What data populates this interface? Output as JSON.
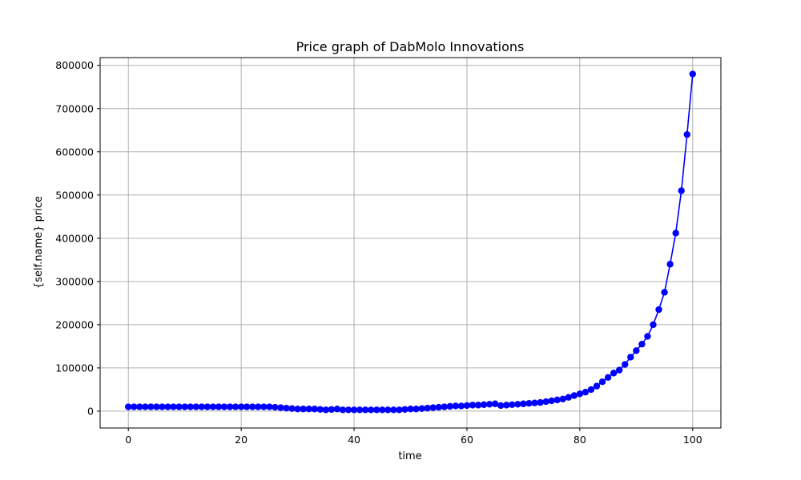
{
  "chart_data": {
    "type": "line",
    "title": "Price graph of DabMolo Innovations",
    "xlabel": "time",
    "ylabel": "{self.name} price",
    "xlim": [
      -5,
      105
    ],
    "ylim": [
      -39000,
      818000
    ],
    "xticks": [
      0,
      20,
      40,
      60,
      80,
      100
    ],
    "yticks": [
      0,
      100000,
      200000,
      300000,
      400000,
      500000,
      600000,
      700000,
      800000
    ],
    "grid": true,
    "marker": "circle",
    "color": "#0000ff",
    "series": [
      {
        "x": [
          0,
          1,
          2,
          3,
          4,
          5,
          6,
          7,
          8,
          9,
          10,
          11,
          12,
          13,
          14,
          15,
          16,
          17,
          18,
          19,
          20,
          21,
          22,
          23,
          24,
          25,
          26,
          27,
          28,
          29,
          30,
          31,
          32,
          33,
          34,
          35,
          36,
          37,
          38,
          39,
          40,
          41,
          42,
          43,
          44,
          45,
          46,
          47,
          48,
          49,
          50,
          51,
          52,
          53,
          54,
          55,
          56,
          57,
          58,
          59,
          60,
          61,
          62,
          63,
          64,
          65,
          66,
          67,
          68,
          69,
          70,
          71,
          72,
          73,
          74,
          75,
          76,
          77,
          78,
          79,
          80,
          81,
          82,
          83,
          84,
          85,
          86,
          87,
          88,
          89,
          90,
          91,
          92,
          93,
          94,
          95,
          96,
          97,
          98,
          99,
          100
        ],
        "y": [
          10000,
          10000,
          10000,
          10000,
          10000,
          10000,
          10000,
          10000,
          10000,
          10000,
          10000,
          10000,
          10000,
          10000,
          10000,
          10000,
          10000,
          10000,
          10000,
          10000,
          10000,
          10000,
          10000,
          10000,
          10000,
          10000,
          9000,
          8000,
          7000,
          6000,
          5000,
          5000,
          5000,
          5000,
          4000,
          3000,
          4000,
          5000,
          3000,
          3000,
          3000,
          3000,
          3000,
          3000,
          3000,
          3000,
          3000,
          3000,
          3000,
          4000,
          5000,
          5000,
          6000,
          7000,
          8000,
          9000,
          10000,
          11000,
          12000,
          12000,
          13000,
          14000,
          14000,
          15000,
          16000,
          17000,
          13000,
          14000,
          15000,
          16000,
          17000,
          18000,
          19000,
          20000,
          22000,
          24000,
          26000,
          28000,
          32000,
          36000,
          40000,
          44000,
          50000,
          58000,
          68000,
          78000,
          88000,
          95000,
          108000,
          125000,
          140000,
          155000,
          173000,
          200000,
          235000,
          275000,
          340000,
          412000,
          510000,
          640000,
          780000
        ]
      }
    ]
  }
}
